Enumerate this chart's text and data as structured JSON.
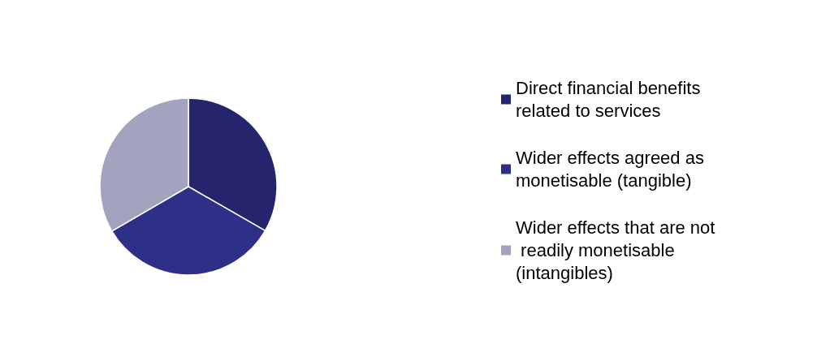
{
  "chart_data": {
    "type": "pie",
    "categories": [
      "Direct financial benefits related to services",
      "Wider effects agreed as monetisable (tangible)",
      "Wider effects that are not readily monetisable (intangibles)"
    ],
    "values": [
      33.3,
      33.3,
      33.4
    ],
    "colors": [
      "#25256e",
      "#2e3088",
      "#a3a3c0"
    ],
    "legend": "right"
  }
}
